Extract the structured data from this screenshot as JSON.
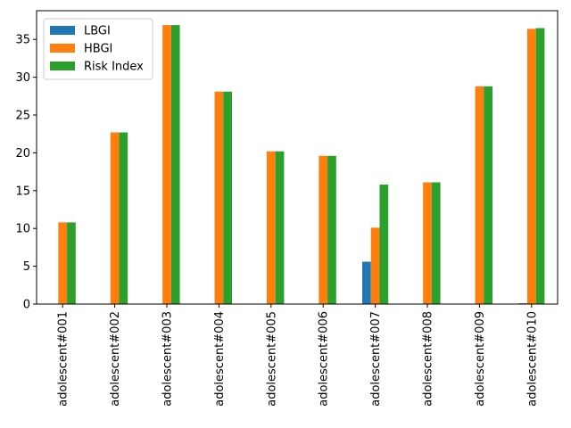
{
  "chart_data": {
    "type": "bar",
    "title": "",
    "xlabel": "",
    "ylabel": "",
    "categories": [
      "adolescent#001",
      "adolescent#002",
      "adolescent#003",
      "adolescent#004",
      "adolescent#005",
      "adolescent#006",
      "adolescent#007",
      "adolescent#008",
      "adolescent#009",
      "adolescent#010"
    ],
    "series": [
      {
        "name": "LBGI",
        "color": "#1f77b4",
        "values": [
          0,
          0,
          0,
          0,
          0,
          0,
          5.6,
          0,
          0,
          0.1
        ]
      },
      {
        "name": "HBGI",
        "color": "#ff7f0e",
        "values": [
          10.8,
          22.7,
          36.9,
          28.1,
          20.2,
          19.6,
          10.1,
          16.1,
          28.8,
          36.4
        ]
      },
      {
        "name": "Risk Index",
        "color": "#2ca02c",
        "values": [
          10.8,
          22.7,
          36.9,
          28.1,
          20.2,
          19.6,
          15.8,
          16.1,
          28.8,
          36.5
        ]
      }
    ],
    "ylim": [
      0,
      38.8
    ],
    "yticks": [
      0,
      5,
      10,
      15,
      20,
      25,
      30,
      35
    ],
    "grid": false,
    "legend_position": "top-left"
  }
}
